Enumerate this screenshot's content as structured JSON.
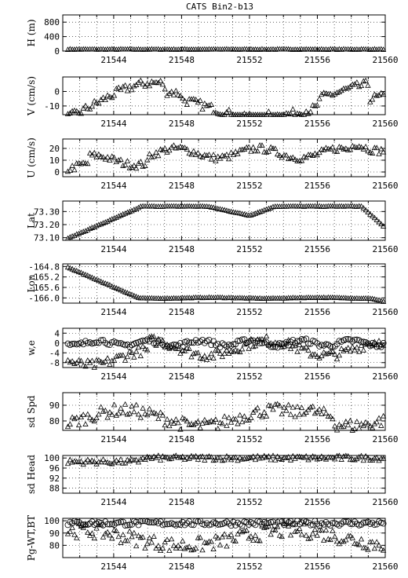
{
  "title": "CATS Bin2-b13",
  "chart_data": [
    {
      "name": "H",
      "type": "scatter",
      "ylabel": "H (m)",
      "ylim": [
        0,
        1000
      ],
      "yticks": [
        "0",
        "400",
        "800"
      ],
      "ytick_values": [
        0,
        400,
        800
      ],
      "series": [
        {
          "marker": "triangle",
          "pattern": "flat",
          "y0": 50,
          "noise": 8
        }
      ]
    },
    {
      "name": "V",
      "type": "scatter",
      "ylabel": "V (cm/s)",
      "ylim": [
        -16,
        10
      ],
      "yticks": [
        "-10",
        "0"
      ],
      "ytick_values": [
        -10,
        0
      ],
      "series": [
        {
          "marker": "triangle",
          "pattern": "v",
          "noise": 3
        }
      ]
    },
    {
      "name": "U",
      "type": "scatter",
      "ylabel": "U (cm/s)",
      "ylim": [
        -4,
        28
      ],
      "yticks": [
        "0",
        "10",
        "20"
      ],
      "ytick_values": [
        0,
        10,
        20
      ],
      "series": [
        {
          "marker": "triangle",
          "pattern": "u",
          "noise": 3
        }
      ]
    },
    {
      "name": "Lat",
      "type": "scatter",
      "ylabel": "Lat",
      "ylim": [
        73.08,
        73.38
      ],
      "yticks": [
        "73.10",
        "73.20",
        "73.30"
      ],
      "ytick_values": [
        73.1,
        73.2,
        73.3
      ],
      "series": [
        {
          "marker": "triangle",
          "pattern": "lat",
          "noise": 0.002
        }
      ]
    },
    {
      "name": "Lon",
      "type": "scatter",
      "ylabel": "Lon",
      "ylim": [
        -166.2,
        -164.7
      ],
      "yticks": [
        "-166.0",
        "-165.6",
        "-165.2",
        "-164.8"
      ],
      "ytick_values": [
        -166.0,
        -165.6,
        -165.2,
        -164.8
      ],
      "series": [
        {
          "marker": "triangle",
          "pattern": "lon",
          "noise": 0.01
        }
      ]
    },
    {
      "name": "w,e",
      "type": "scatter",
      "ylabel": "w,e",
      "ylim": [
        -10,
        6
      ],
      "yticks": [
        "-8",
        "-4",
        "0",
        "4"
      ],
      "ytick_values": [
        -8,
        -4,
        0,
        4
      ],
      "series": [
        {
          "marker": "triangle",
          "pattern": "w",
          "noise": 2
        },
        {
          "marker": "circle",
          "pattern": "e",
          "noise": 1
        }
      ]
    },
    {
      "name": "sd Spd",
      "type": "scatter",
      "ylabel": "sd Spd",
      "ylim": [
        74,
        98
      ],
      "yticks": [
        "80",
        "90"
      ],
      "ytick_values": [
        80,
        90
      ],
      "series": [
        {
          "marker": "triangle",
          "pattern": "spd",
          "noise": 4
        }
      ]
    },
    {
      "name": "sd Head",
      "type": "scatter",
      "ylabel": "sd Head",
      "ylim": [
        86,
        101
      ],
      "yticks": [
        "88",
        "92",
        "96",
        "100"
      ],
      "ytick_values": [
        88,
        92,
        96,
        100
      ],
      "series": [
        {
          "marker": "triangle",
          "pattern": "head",
          "noise": 1
        }
      ]
    },
    {
      "name": "Pg-WT,BT",
      "type": "scatter",
      "ylabel": "Pg-WT,BT",
      "ylim": [
        70,
        102
      ],
      "yticks": [
        "80",
        "90",
        "100"
      ],
      "ytick_values": [
        80,
        90,
        100
      ],
      "series": [
        {
          "marker": "triangle",
          "pattern": "pgwt",
          "noise": 6
        },
        {
          "marker": "circle",
          "pattern": "pgbt",
          "noise": 2
        }
      ]
    }
  ],
  "xaxis": {
    "xlim": [
      21541,
      21560
    ],
    "ticks": [
      21544,
      21548,
      21552,
      21556,
      21560
    ],
    "tick_labels": [
      "21544",
      "21548",
      "21552",
      "21556",
      "21560"
    ]
  }
}
